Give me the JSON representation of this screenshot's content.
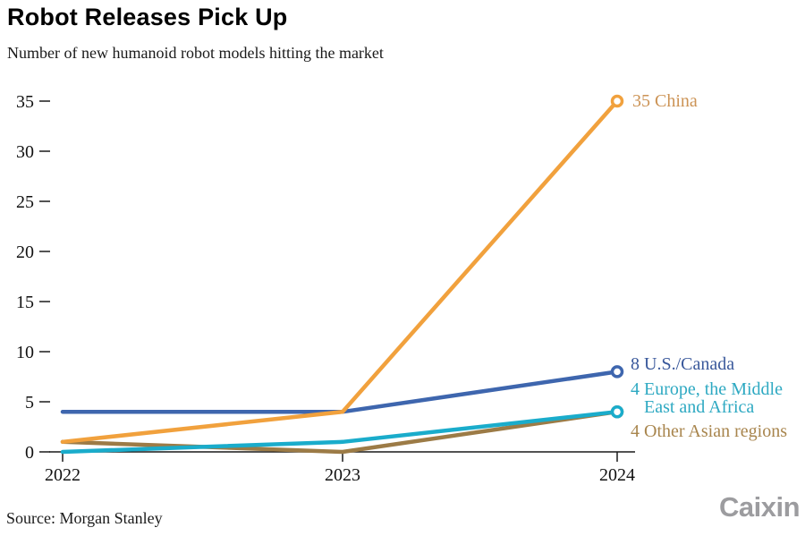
{
  "header": {
    "title": "Robot Releases Pick Up",
    "subtitle": "Number of new humanoid robot models hitting the market"
  },
  "footer": {
    "source": "Source: Morgan Stanley",
    "logo": "Caixin"
  },
  "chart_data": {
    "type": "line",
    "title": "Robot Releases Pick Up",
    "subtitle": "Number of new humanoid robot models hitting the market",
    "x": [
      "2022",
      "2023",
      "2024"
    ],
    "y_ticks": [
      0,
      5,
      10,
      15,
      20,
      25,
      30,
      35
    ],
    "ylim": [
      0,
      35
    ],
    "grid": false,
    "legend_position": "end-of-line-labels-right",
    "series": [
      {
        "name": "China",
        "values": [
          1,
          4,
          35
        ],
        "end_value": 35,
        "color": "#F1A13D",
        "label_color": "#CC9355",
        "label_lines": [
          "35 China"
        ]
      },
      {
        "name": "U.S./Canada",
        "values": [
          4,
          4,
          8
        ],
        "end_value": 8,
        "color": "#3E66AE",
        "label_color": "#39589B",
        "label_lines": [
          "8 U.S./Canada"
        ]
      },
      {
        "name": "Europe, the Middle East and Africa",
        "values": [
          0,
          1,
          4
        ],
        "end_value": 4,
        "color": "#1AACCB",
        "label_color": "#2EA9C2",
        "label_lines": [
          "4 Europe, the Middle",
          "East and Africa"
        ]
      },
      {
        "name": "Other Asian regions",
        "values": [
          1,
          0,
          4
        ],
        "end_value": 4,
        "color": "#9C7B46",
        "label_color": "#A8854D",
        "label_lines": [
          "4 Other Asian regions"
        ]
      }
    ],
    "source": "Source: Morgan Stanley",
    "branding": "Caixin"
  }
}
